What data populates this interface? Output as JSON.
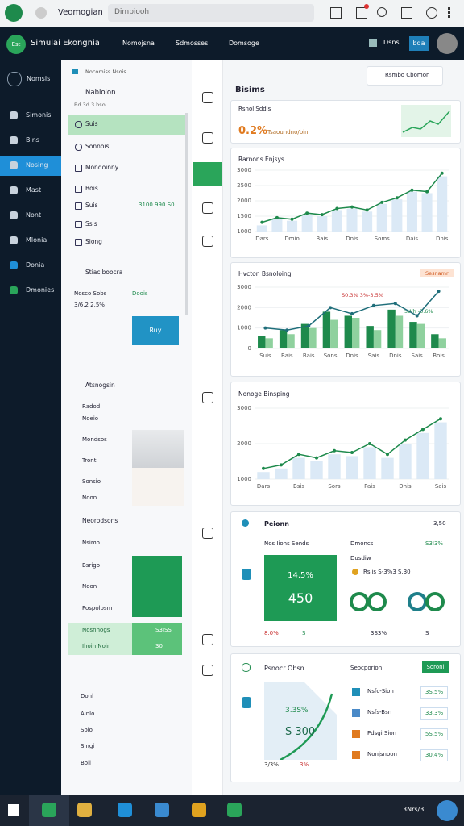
{
  "browser": {
    "tab_title": "Veomogian",
    "address": "Dimbiooh"
  },
  "header": {
    "app_name": "Simulai Ekongnia",
    "logo": "Est",
    "nav": [
      "Nomojsna",
      "Sdmosses",
      "Domsoge"
    ],
    "user": "Dsns",
    "badge": "bda"
  },
  "sidebar": {
    "top": "Nomsis",
    "items": [
      "Simonis",
      "Bins",
      "Nosing",
      "Mast",
      "Nont",
      "Mlonia",
      "Donia",
      "Dmonies"
    ],
    "active": 2
  },
  "panel": {
    "header": "Nocomiss Nsois",
    "section_title": "Nabiolon",
    "section_sub": "Bd 3d 3 bso",
    "list": [
      "Suis",
      "Sonnois",
      "Mondoinny",
      "Bois",
      "Suis",
      "Ssis",
      "Siong"
    ],
    "list_value": "3100 990 S0",
    "info_title": "Stiaciboocra",
    "info_label": "Nosco Sobs",
    "info_link": "Doois",
    "info_value": "3/6.2 2.5%",
    "button": "Ruy",
    "group2_title": "Atsnogsin",
    "group2": [
      "Radod",
      "Noeio",
      "Mondsos",
      "Tront",
      "Sonsio",
      "Noon"
    ],
    "group3_title": "Neorodsons",
    "group3": [
      "Nsimo",
      "Bsrigo",
      "Noon",
      "Pospolosm"
    ],
    "group3_green": [
      "Nosnnogs",
      "Ihoin Noin"
    ],
    "green_values": [
      "S3ISS",
      "30"
    ],
    "footer": [
      "Donl",
      "Ainlo",
      "Solo",
      "Singi",
      "Boil"
    ]
  },
  "main": {
    "title": "Bisims",
    "select": "Rsmbo Cbomon",
    "stat": {
      "label": "Rsnol Sddis",
      "value": "0.2%",
      "note": "Tsaoundno/bin"
    },
    "metrics": {
      "title": "Peionn",
      "corner": "3,50",
      "row_label": "Nos Iions Sends",
      "row_mid": "Dmoncs",
      "row_value": "S3I3%",
      "box_top": "14.5%",
      "box_big": "450",
      "mid_label": "Dusdiw",
      "mid_detail": "Rsiis S-3%3 S.30",
      "bottom": [
        "8.0%",
        "S",
        "3S3%",
        "S"
      ]
    },
    "bottom_card": {
      "title": "Psnocr Obsn",
      "subtitle": "Seocporion",
      "button": "Soroni",
      "graphic_top": "3.3S%",
      "graphic_big": "S 300",
      "graphic_foot": [
        "3/3%",
        "3%"
      ],
      "list": [
        {
          "label": "Nsfc-Sion",
          "value": "3S.5%"
        },
        {
          "label": "Nsfs-Bsn",
          "value": "33.3%"
        },
        {
          "label": "Pdsgi Sion",
          "value": "5S.5%"
        },
        {
          "label": "Nonjsnoon",
          "value": "30.4%"
        }
      ]
    }
  },
  "taskbar": {
    "clock": "3Nrs/3"
  },
  "chart_data": [
    {
      "type": "combo",
      "title": "Rarnons Enjsys",
      "categories": [
        "Dars",
        null,
        "Dmio",
        null,
        "Bais",
        null,
        "Dnis",
        null,
        "Soms",
        null,
        "Dais",
        null,
        "Dnis"
      ],
      "series": [
        {
          "type": "bar",
          "color": "#dbe9f6",
          "values": [
            1200,
            1400,
            1350,
            1550,
            1500,
            1700,
            1750,
            1650,
            1900,
            2050,
            2300,
            2250,
            2800
          ]
        },
        {
          "type": "line",
          "color": "#1e8a4c",
          "values": [
            1300,
            1450,
            1400,
            1600,
            1550,
            1750,
            1800,
            1700,
            1950,
            2100,
            2350,
            2300,
            2900
          ]
        }
      ],
      "ylim": [
        1000,
        3000
      ],
      "yticks": [
        1000,
        1500,
        2000,
        2500,
        3000
      ]
    },
    {
      "type": "combo",
      "title": "Hvcton Bsnoloing",
      "badge": "Sesnamr",
      "annotations": [
        {
          "text": "S0.3% 3%-3.5%"
        },
        {
          "text": "5Wh -3.6%"
        }
      ],
      "categories": [
        "Suis",
        "Bais",
        "Bais",
        "Sons",
        "Dnis",
        "Sais",
        "Dnis",
        "Sais",
        "Bois"
      ],
      "series": [
        {
          "type": "bar",
          "color": "#1e8a4c",
          "values": [
            600,
            900,
            1200,
            1800,
            1600,
            1100,
            1900,
            1300,
            700
          ]
        },
        {
          "type": "bar",
          "color": "#8fd19e",
          "values": [
            500,
            700,
            1000,
            1400,
            1500,
            900,
            1600,
            1200,
            500
          ]
        },
        {
          "type": "line",
          "color": "#1f6e7a",
          "values": [
            1000,
            900,
            1100,
            2000,
            1700,
            2100,
            2200,
            1600,
            2800
          ]
        }
      ],
      "ylim": [
        0,
        3000
      ],
      "yticks": [
        0,
        1000,
        2000,
        3000
      ]
    },
    {
      "type": "combo",
      "title": "Nonoge Binsping",
      "categories": [
        "Dars",
        null,
        "Bsis",
        null,
        "Sors",
        null,
        "Pais",
        null,
        "Dnis",
        null,
        "Sais"
      ],
      "series": [
        {
          "type": "bar",
          "color": "#dbe9f6",
          "values": [
            1200,
            1300,
            1600,
            1500,
            1700,
            1650,
            1900,
            1600,
            2000,
            2300,
            2600
          ]
        },
        {
          "type": "line",
          "color": "#1e8a4c",
          "values": [
            1300,
            1400,
            1700,
            1600,
            1800,
            1750,
            2000,
            1700,
            2100,
            2400,
            2700
          ]
        }
      ],
      "ylim": [
        1000,
        3000
      ],
      "yticks": [
        1000,
        2000,
        3000
      ]
    }
  ]
}
